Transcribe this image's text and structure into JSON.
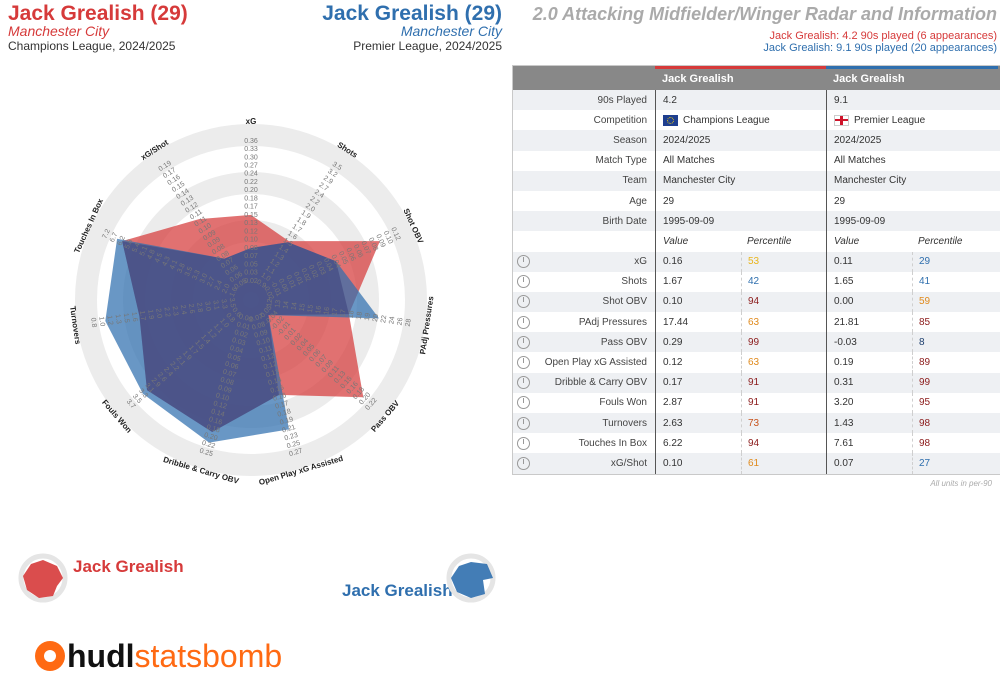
{
  "header": {
    "p1_name": "Jack Grealish (29)",
    "p1_team": "Manchester City",
    "p1_comp": "Champions League, 2024/2025",
    "p2_name": "Jack Grealish (29)",
    "p2_team": "Manchester City",
    "p2_comp": "Premier League, 2024/2025",
    "title": "2.0 Attacking Midfielder/Winger Radar and Information",
    "sub1": "Jack Grealish: 4.2 90s played (6 appearances)",
    "sub2": "Jack Grealish: 9.1 90s played (20 appearances)"
  },
  "colors": {
    "player1": "#d63a3a",
    "player2": "#2f6fae",
    "brand": "#ff6a13"
  },
  "chart_data": {
    "type": "radar",
    "axes": [
      "xG",
      "Shots",
      "Shot OBV",
      "PAdj Pressures",
      "Pass OBV",
      "Open Play xG Assisted",
      "Dribble & Carry OBV",
      "Fouls Won",
      "Turnovers",
      "Touches In Box",
      "xG/Shot"
    ],
    "ticks": [
      [
        "0.02",
        "0.03",
        "0.05",
        "0.07",
        "0.08",
        "0.10",
        "0.12",
        "0.13",
        "0.15",
        "0.17",
        "0.18",
        "0.20",
        "0.22",
        "0.24",
        "0.27",
        "0.30",
        "0.33",
        "0.36"
      ],
      [
        "0.9",
        "1.0",
        "1.1",
        "1.2",
        "1.3",
        "1.4",
        "1.5",
        "1.6",
        "1.7",
        "1.8",
        "1.9",
        "2.0",
        "2.2",
        "2.4",
        "2.7",
        "2.9",
        "3.2",
        "3.5"
      ],
      [
        "-0.02",
        "-0.01",
        "0.00",
        "0.01",
        "0.01",
        "0.02",
        "0.02",
        "0.03",
        "0.04",
        "0.04",
        "0.05",
        "0.06",
        "0.06",
        "0.07",
        "0.08",
        "0.09",
        "0.10",
        "0.12"
      ],
      [
        "12",
        "13",
        "14",
        "14",
        "15",
        "15",
        "16",
        "16",
        "17",
        "17",
        "18",
        "18",
        "19",
        "20",
        "22",
        "24",
        "26",
        "28"
      ],
      [
        "-0.05",
        "-0.04",
        "-0.02",
        "-0.01",
        "0.01",
        "0.02",
        "0.04",
        "0.05",
        "0.06",
        "0.07",
        "0.09",
        "0.11",
        "0.13",
        "0.15",
        "0.16",
        "0.18",
        "0.20",
        "0.22"
      ],
      [
        "0.07",
        "0.08",
        "0.09",
        "0.10",
        "0.11",
        "0.12",
        "0.12",
        "0.13",
        "0.14",
        "0.15",
        "0.16",
        "0.17",
        "0.18",
        "0.19",
        "0.21",
        "0.23",
        "0.25",
        "0.27"
      ],
      [
        "0.00",
        "0.01",
        "0.02",
        "0.03",
        "0.04",
        "0.05",
        "0.06",
        "0.07",
        "0.08",
        "0.09",
        "0.10",
        "0.12",
        "0.14",
        "0.16",
        "0.18",
        "0.20",
        "0.22",
        "0.25"
      ],
      [
        "0.6",
        "0.8",
        "1.0",
        "1.1",
        "1.2",
        "1.4",
        "1.5",
        "1.7",
        "1.9",
        "2.1",
        "2.2",
        "2.4",
        "2.6",
        "2.9",
        "3.1",
        "3.3",
        "3.5",
        "3.7"
      ],
      [
        "3.5",
        "3.3",
        "3.1",
        "3.0",
        "2.8",
        "2.6",
        "2.4",
        "2.3",
        "2.2",
        "2.0",
        "1.9",
        "1.7",
        "1.6",
        "1.5",
        "1.3",
        "1.2",
        "1.0",
        "0.8"
      ],
      [
        "1.6",
        "2.0",
        "2.4",
        "2.7",
        "3.0",
        "3.3",
        "3.5",
        "3.8",
        "4.1",
        "4.3",
        "4.5",
        "4.8",
        "5.1",
        "5.4",
        "5.8",
        "6.2",
        "6.7",
        "7.2"
      ],
      [
        "0.05",
        "0.06",
        "0.06",
        "0.07",
        "0.08",
        "0.08",
        "0.09",
        "0.09",
        "0.10",
        "0.11",
        "0.11",
        "0.12",
        "0.13",
        "0.14",
        "0.15",
        "0.16",
        "0.17",
        "0.19"
      ]
    ],
    "series": [
      {
        "name": "Jack Grealish (Champions League)",
        "percentiles": [
          53,
          42,
          94,
          63,
          99,
          63,
          91,
          91,
          73,
          94,
          61
        ]
      },
      {
        "name": "Jack Grealish (Premier League)",
        "percentiles": [
          29,
          41,
          59,
          85,
          8,
          89,
          99,
          95,
          98,
          98,
          27
        ]
      }
    ],
    "range": [
      0,
      100
    ]
  },
  "table": {
    "header": {
      "col1": "Jack Grealish",
      "col2": "Jack Grealish"
    },
    "info_rows": [
      {
        "label": "90s Played",
        "v1": "4.2",
        "v2": "9.1"
      },
      {
        "label": "Competition",
        "v1": "Champions League",
        "v2": "Premier League"
      },
      {
        "label": "Season",
        "v1": "2024/2025",
        "v2": "2024/2025"
      },
      {
        "label": "Match Type",
        "v1": "All Matches",
        "v2": "All Matches"
      },
      {
        "label": "Team",
        "v1": "Manchester City",
        "v2": "Manchester City"
      },
      {
        "label": "Age",
        "v1": "29",
        "v2": "29"
      },
      {
        "label": "Birth Date",
        "v1": "1995-09-09",
        "v2": "1995-09-09"
      }
    ],
    "sub_header": {
      "value": "Value",
      "percentile": "Percentile"
    },
    "metric_rows": [
      {
        "label": "xG",
        "v1": "0.16",
        "p1": "53",
        "v2": "0.11",
        "p2": "29",
        "c1": "#e9b51c",
        "c2": "#2f6fae"
      },
      {
        "label": "Shots",
        "v1": "1.67",
        "p1": "42",
        "v2": "1.65",
        "p2": "41",
        "c1": "#2f6fae",
        "c2": "#2f6fae"
      },
      {
        "label": "Shot OBV",
        "v1": "0.10",
        "p1": "94",
        "v2": "0.00",
        "p2": "59",
        "c1": "#8b1a1a",
        "c2": "#e08a1c"
      },
      {
        "label": "PAdj Pressures",
        "v1": "17.44",
        "p1": "63",
        "v2": "21.81",
        "p2": "85",
        "c1": "#e08a1c",
        "c2": "#8b1a1a"
      },
      {
        "label": "Pass OBV",
        "v1": "0.29",
        "p1": "99",
        "v2": "-0.03",
        "p2": "8",
        "c1": "#8b1a1a",
        "c2": "#1d3f6e"
      },
      {
        "label": "Open Play xG Assisted",
        "v1": "0.12",
        "p1": "63",
        "v2": "0.19",
        "p2": "89",
        "c1": "#e08a1c",
        "c2": "#8b1a1a"
      },
      {
        "label": "Dribble & Carry OBV",
        "v1": "0.17",
        "p1": "91",
        "v2": "0.31",
        "p2": "99",
        "c1": "#8b1a1a",
        "c2": "#8b1a1a"
      },
      {
        "label": "Fouls Won",
        "v1": "2.87",
        "p1": "91",
        "v2": "3.20",
        "p2": "95",
        "c1": "#8b1a1a",
        "c2": "#8b1a1a"
      },
      {
        "label": "Turnovers",
        "v1": "2.63",
        "p1": "73",
        "v2": "1.43",
        "p2": "98",
        "c1": "#c8531c",
        "c2": "#8b1a1a"
      },
      {
        "label": "Touches In Box",
        "v1": "6.22",
        "p1": "94",
        "v2": "7.61",
        "p2": "98",
        "c1": "#8b1a1a",
        "c2": "#8b1a1a"
      },
      {
        "label": "xG/Shot",
        "v1": "0.10",
        "p1": "61",
        "v2": "0.07",
        "p2": "27",
        "c1": "#e08a1c",
        "c2": "#2f6fae"
      }
    ],
    "footnote": "All units in per-90"
  },
  "legend": {
    "p1": "Jack Grealish",
    "p2": "Jack Grealish"
  },
  "logo": {
    "part1": "hudl",
    "part2": "statsbomb"
  }
}
